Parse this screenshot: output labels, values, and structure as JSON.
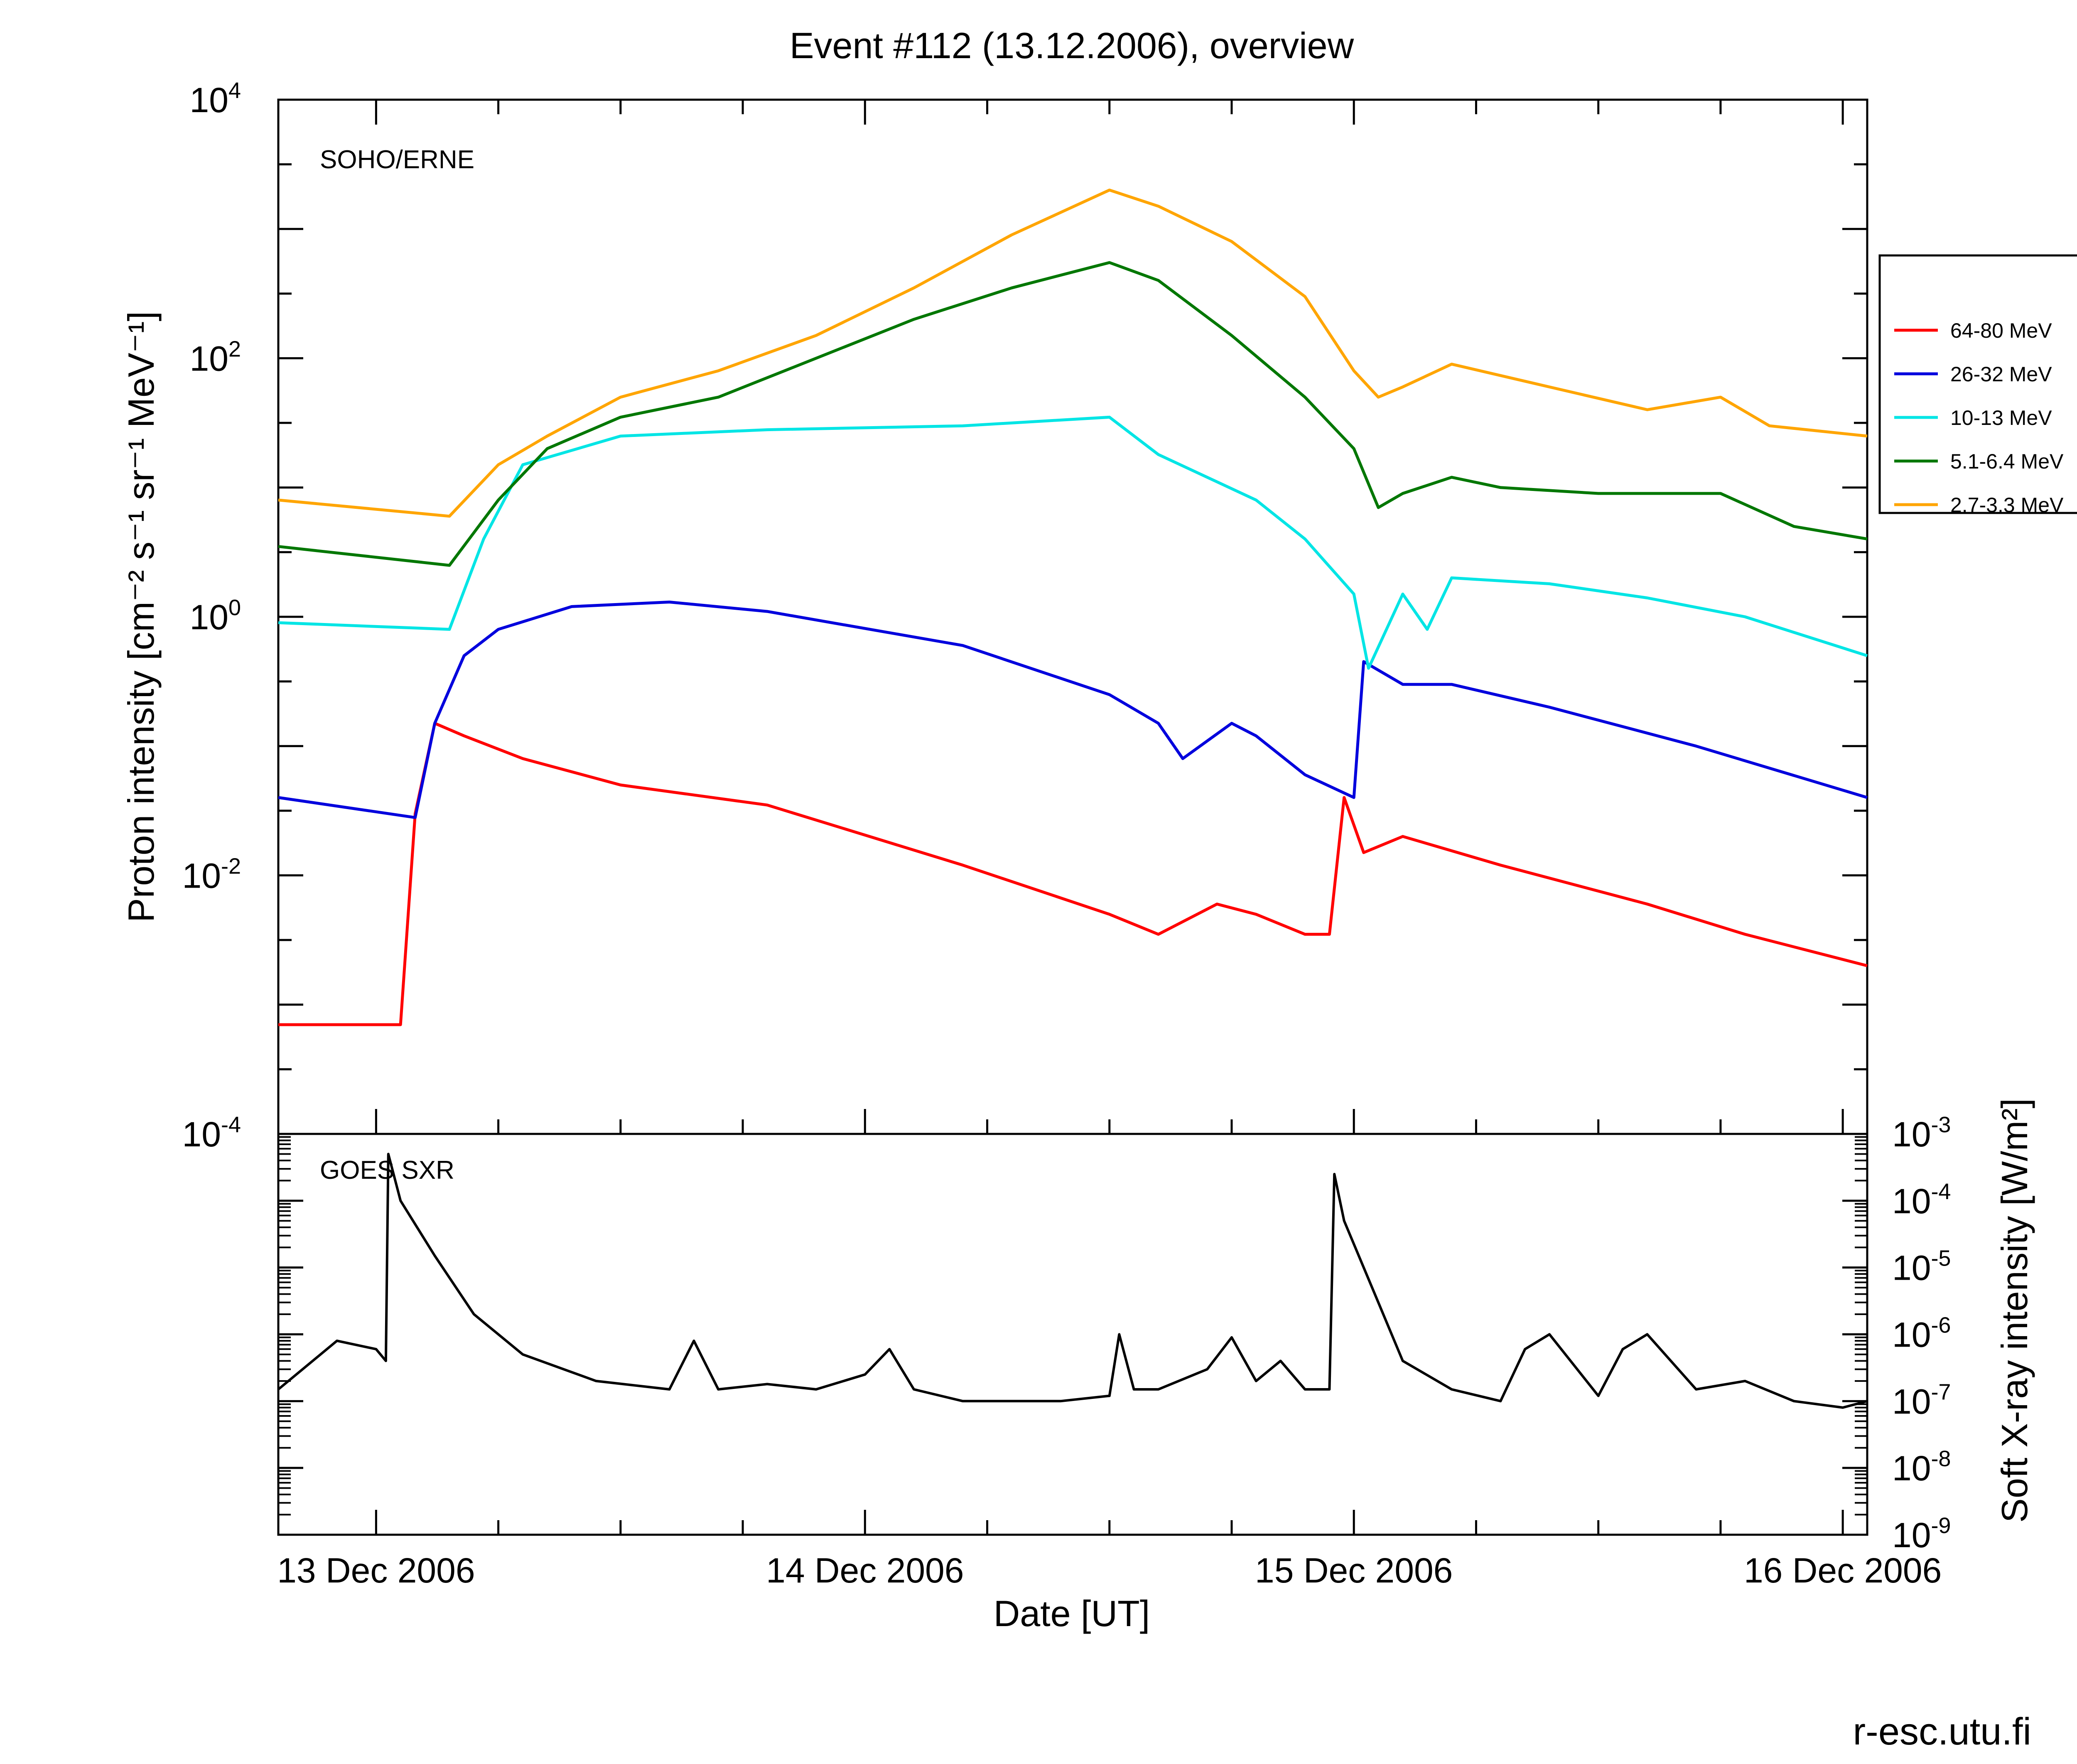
{
  "footer": "r-esc.utu.fi",
  "chart_data": [
    {
      "type": "line",
      "title": "Event #112 (13.12.2006), overview",
      "panel_label": "SOHO/ERNE",
      "xlabel": "Date [UT]",
      "ylabel": "Proton intensity [cm⁻² s⁻¹ sr⁻¹ MeV⁻¹]",
      "x_ticks": [
        "13 Dec 2006",
        "14 Dec 2006",
        "15 Dec 2006",
        "16 Dec 2006"
      ],
      "xlim_days": [
        -0.2,
        3.05
      ],
      "y_scale": "log",
      "ylim": [
        0.0001,
        10000
      ],
      "y_ticks": [
        {
          "base": "10",
          "exp": "4"
        },
        {
          "base": "10",
          "exp": "2"
        },
        {
          "base": "10",
          "exp": "0"
        },
        {
          "base": "10",
          "exp": "-2"
        },
        {
          "base": "10",
          "exp": "-4"
        }
      ],
      "legend_position": "right",
      "series": [
        {
          "name": "64-80 MeV",
          "color": "#ff0000",
          "x": [
            -0.2,
            0.05,
            0.08,
            0.12,
            0.18,
            0.3,
            0.5,
            0.8,
            1.2,
            1.5,
            1.6,
            1.72,
            1.8,
            1.9,
            1.95,
            1.98,
            2.02,
            2.1,
            2.3,
            2.6,
            2.8,
            3.05
          ],
          "y": [
            0.0007,
            0.0007,
            0.03,
            0.15,
            0.12,
            0.08,
            0.05,
            0.035,
            0.012,
            0.005,
            0.0035,
            0.006,
            0.005,
            0.0035,
            0.0035,
            0.04,
            0.015,
            0.02,
            0.012,
            0.006,
            0.0035,
            0.002
          ]
        },
        {
          "name": "26-32 MeV",
          "color": "#0000dd",
          "x": [
            -0.2,
            0.08,
            0.12,
            0.18,
            0.25,
            0.4,
            0.6,
            0.8,
            1.2,
            1.5,
            1.6,
            1.65,
            1.75,
            1.8,
            1.9,
            2.0,
            2.02,
            2.1,
            2.2,
            2.4,
            2.7,
            3.05
          ],
          "y": [
            0.04,
            0.028,
            0.15,
            0.5,
            0.8,
            1.2,
            1.3,
            1.1,
            0.6,
            0.25,
            0.15,
            0.08,
            0.15,
            0.12,
            0.06,
            0.04,
            0.45,
            0.3,
            0.3,
            0.2,
            0.1,
            0.04
          ]
        },
        {
          "name": "10-13 MeV",
          "color": "#00e5e5",
          "x": [
            -0.2,
            0.15,
            0.22,
            0.3,
            0.5,
            0.8,
            1.2,
            1.5,
            1.6,
            1.8,
            1.9,
            2.0,
            2.03,
            2.1,
            2.15,
            2.2,
            2.4,
            2.6,
            2.8,
            3.05
          ],
          "y": [
            0.9,
            0.8,
            4,
            15,
            25,
            28,
            30,
            35,
            18,
            8,
            4,
            1.5,
            0.4,
            1.5,
            0.8,
            2,
            1.8,
            1.4,
            1.0,
            0.5
          ]
        },
        {
          "name": "5.1-6.4 MeV",
          "color": "#007700",
          "x": [
            -0.2,
            0.15,
            0.25,
            0.35,
            0.5,
            0.7,
            0.9,
            1.1,
            1.3,
            1.5,
            1.6,
            1.75,
            1.9,
            2.0,
            2.05,
            2.1,
            2.2,
            2.3,
            2.5,
            2.75,
            2.9,
            3.05
          ],
          "y": [
            3.5,
            2.5,
            8,
            20,
            35,
            50,
            100,
            200,
            350,
            550,
            400,
            150,
            50,
            20,
            7,
            9,
            12,
            10,
            9,
            9,
            5,
            4
          ]
        },
        {
          "name": "2.7-3.3 MeV",
          "color": "#ffa500",
          "x": [
            -0.2,
            0.15,
            0.25,
            0.35,
            0.5,
            0.7,
            0.9,
            1.1,
            1.3,
            1.5,
            1.6,
            1.75,
            1.9,
            2.0,
            2.05,
            2.1,
            2.2,
            2.4,
            2.6,
            2.75,
            2.85,
            3.05
          ],
          "y": [
            8,
            6,
            15,
            25,
            50,
            80,
            150,
            350,
            900,
            2000,
            1500,
            800,
            300,
            80,
            50,
            60,
            90,
            60,
            40,
            50,
            30,
            25
          ]
        }
      ]
    },
    {
      "type": "line",
      "panel_label": "GOES SXR",
      "ylabel": "Soft X-ray intensity [W/m²]",
      "y_scale": "log",
      "ylim": [
        1e-09,
        0.001
      ],
      "y_ticks": [
        {
          "base": "10",
          "exp": "-3"
        },
        {
          "base": "10",
          "exp": "-4"
        },
        {
          "base": "10",
          "exp": "-5"
        },
        {
          "base": "10",
          "exp": "-6"
        },
        {
          "base": "10",
          "exp": "-7"
        },
        {
          "base": "10",
          "exp": "-8"
        },
        {
          "base": "10",
          "exp": "-9"
        }
      ],
      "series": [
        {
          "color": "#000000",
          "x": [
            -0.2,
            -0.08,
            0.0,
            0.02,
            0.025,
            0.05,
            0.12,
            0.2,
            0.3,
            0.45,
            0.6,
            0.65,
            0.7,
            0.8,
            0.9,
            1.0,
            1.05,
            1.1,
            1.2,
            1.4,
            1.5,
            1.52,
            1.55,
            1.6,
            1.7,
            1.75,
            1.8,
            1.85,
            1.9,
            1.95,
            1.96,
            1.98,
            2.05,
            2.1,
            2.2,
            2.3,
            2.35,
            2.4,
            2.5,
            2.55,
            2.6,
            2.7,
            2.8,
            2.9,
            3.0,
            3.05
          ],
          "y": [
            1.5e-07,
            8e-07,
            6e-07,
            4e-07,
            0.0005,
            0.0001,
            1.5e-05,
            2e-06,
            5e-07,
            2e-07,
            1.5e-07,
            8e-07,
            1.5e-07,
            1.8e-07,
            1.5e-07,
            2.5e-07,
            6e-07,
            1.5e-07,
            1e-07,
            1e-07,
            1.2e-07,
            1e-06,
            1.5e-07,
            1.5e-07,
            3e-07,
            9e-07,
            2e-07,
            4e-07,
            1.5e-07,
            1.5e-07,
            0.00025,
            5e-05,
            3e-06,
            4e-07,
            1.5e-07,
            1e-07,
            6e-07,
            1e-06,
            1.2e-07,
            6e-07,
            1e-06,
            1.5e-07,
            2e-07,
            1e-07,
            8e-08,
            1e-07
          ]
        }
      ]
    }
  ]
}
